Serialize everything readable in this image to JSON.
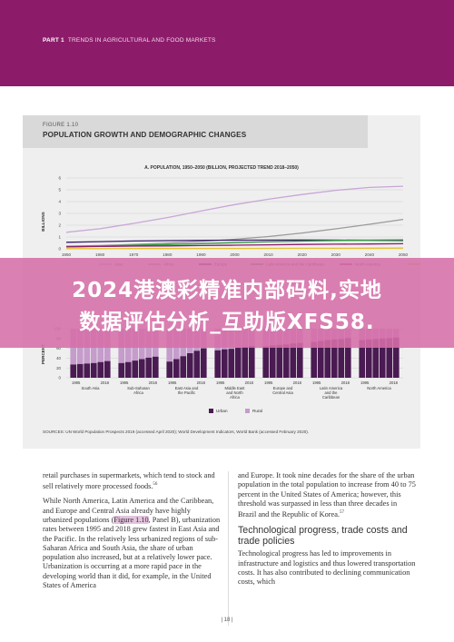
{
  "header": {
    "part": "PART 1",
    "section": "TRENDS IN AGRICULTURAL AND FOOD MARKETS"
  },
  "figure": {
    "number": "FIGURE 1.10",
    "title": "POPULATION GROWTH AND DEMOGRAPHIC CHANGES",
    "panel_a_title": "A. POPULATION, 1950–2050 (BILLION, PROJECTED TREND 2018–2050)",
    "y_label": "BILLIONS",
    "panel_b_y_label": "PERCENT",
    "source": "SOURCES: UN World Population Prospects 2019 (accessed April 2020); World Development Indicators, World Bank (accessed February 2020)."
  },
  "chart_data": [
    {
      "type": "line",
      "title": "A. POPULATION, 1950–2050 (BILLION, PROJECTED TREND 2018–2050)",
      "ylabel": "BILLIONS",
      "x": [
        1950,
        1960,
        1970,
        1980,
        1990,
        2000,
        2010,
        2020,
        2030,
        2040,
        2050
      ],
      "xlim": [
        1950,
        2050
      ],
      "ylim": [
        0,
        6
      ],
      "yticks": [
        0,
        1,
        2,
        3,
        4,
        5,
        6
      ],
      "legend_position": "bottom",
      "series": [
        {
          "name": "Asia",
          "color": "#c8a6d6",
          "values": [
            1.4,
            1.7,
            2.15,
            2.65,
            3.2,
            3.75,
            4.2,
            4.6,
            4.95,
            5.2,
            5.3
          ]
        },
        {
          "name": "Africa",
          "color": "#9a9a9a",
          "values": [
            0.23,
            0.28,
            0.37,
            0.48,
            0.63,
            0.81,
            1.04,
            1.34,
            1.69,
            2.08,
            2.49
          ]
        },
        {
          "name": "Europe",
          "color": "#3a1f6b",
          "values": [
            0.55,
            0.61,
            0.66,
            0.69,
            0.72,
            0.73,
            0.74,
            0.75,
            0.74,
            0.72,
            0.71
          ]
        },
        {
          "name": "Latin America and the Caribbean",
          "color": "#2e9b3a",
          "values": [
            0.17,
            0.22,
            0.29,
            0.36,
            0.44,
            0.52,
            0.6,
            0.65,
            0.71,
            0.74,
            0.76
          ]
        },
        {
          "name": "North America",
          "color": "#8c1c6a",
          "values": [
            0.17,
            0.2,
            0.23,
            0.25,
            0.28,
            0.31,
            0.34,
            0.37,
            0.39,
            0.41,
            0.43
          ]
        },
        {
          "name": "Oceania",
          "color": "#e6c22a",
          "values": [
            0.013,
            0.016,
            0.02,
            0.023,
            0.027,
            0.031,
            0.037,
            0.043,
            0.049,
            0.054,
            0.06
          ]
        }
      ]
    },
    {
      "type": "bar",
      "ylabel": "PERCENT",
      "ylim": [
        0,
        100
      ],
      "yticks": [
        0,
        20,
        40,
        60,
        80,
        100
      ],
      "regions": [
        "South Asia",
        "Sub-Saharan Africa",
        "East Asia and the Pacific",
        "Middle East and North Africa",
        "Europe and Central Asia",
        "Latin America and the Caribbean",
        "North America"
      ],
      "years": [
        "1995",
        "2018"
      ],
      "bars_per_region": 6,
      "legend_position": "bottom",
      "series": [
        {
          "name": "Urban",
          "color": "#4a1a52",
          "values": [
            [
              27,
              28,
              29,
              30,
              32,
              34
            ],
            [
              30,
              32,
              35,
              38,
              41,
              43
            ],
            [
              33,
              38,
              44,
              50,
              55,
              60
            ],
            [
              56,
              58,
              59,
              61,
              63,
              65
            ],
            [
              64,
              66,
              67,
              68,
              70,
              71
            ],
            [
              73,
              75,
              77,
              78,
              79,
              81
            ],
            [
              77,
              78,
              79,
              80,
              81,
              82
            ]
          ]
        },
        {
          "name": "Rural",
          "color": "#c59ccb",
          "values": [
            [
              73,
              72,
              71,
              70,
              68,
              66
            ],
            [
              70,
              68,
              65,
              62,
              59,
              57
            ],
            [
              67,
              62,
              56,
              50,
              45,
              40
            ],
            [
              44,
              42,
              41,
              39,
              37,
              35
            ],
            [
              36,
              34,
              33,
              32,
              30,
              29
            ],
            [
              27,
              25,
              23,
              22,
              21,
              19
            ],
            [
              23,
              22,
              21,
              20,
              19,
              18
            ]
          ]
        }
      ]
    }
  ],
  "overlay": {
    "line1": "2024港澳彩精准内部码料,实地",
    "line2": "数据评估分析_互助版XFS58."
  },
  "body": {
    "left": {
      "p1": "retail purchases in supermarkets, which tend to stock and sell relatively more processed foods.",
      "p1_ref": "56",
      "p2_a": "While North America, Latin America and the Caribbean, and Europe and Central Asia already have highly urbanized populations (",
      "p2_link": "Figure 1.10",
      "p2_b": ", Panel B), urbanization rates between 1995 and 2018 grew fastest in East Asia and the Pacific. In the relatively less urbanized regions of sub-Saharan Africa and South Asia, the share of urban population also increased, but at a relatively lower pace. Urbanization is occurring at a more rapid pace in the developing world than it did, for example, in the United States of America"
    },
    "right": {
      "p1": "and Europe. It took nine decades for the share of the urban population in the total population to increase from 40 to 75 percent in the United States of America; however, this threshold was surpassed in less than three decades in Brazil and the Republic of Korea.",
      "p1_ref": "57",
      "heading": "Technological progress, trade costs and trade policies",
      "p2": "Technological progress has led to improvements in infrastructure and logistics and thus lowered transportation costs. It has also contributed to declining communication costs, which"
    }
  },
  "page_number": "| 18 |"
}
